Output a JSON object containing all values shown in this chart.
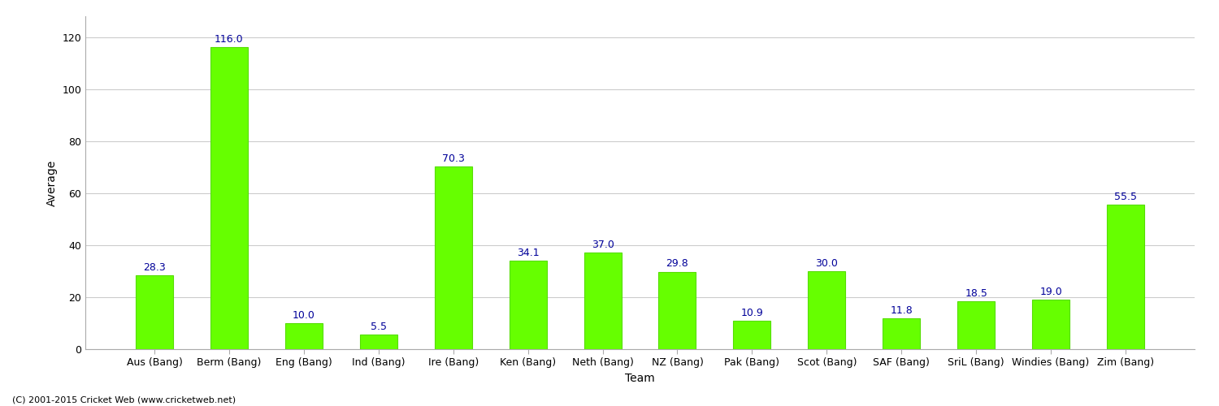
{
  "categories": [
    "Aus (Bang)",
    "Berm (Bang)",
    "Eng (Bang)",
    "Ind (Bang)",
    "Ire (Bang)",
    "Ken (Bang)",
    "Neth (Bang)",
    "NZ (Bang)",
    "Pak (Bang)",
    "Scot (Bang)",
    "SAF (Bang)",
    "SriL (Bang)",
    "Windies (Bang)",
    "Zim (Bang)"
  ],
  "values": [
    28.3,
    116.0,
    10.0,
    5.5,
    70.3,
    34.1,
    37.0,
    29.8,
    10.9,
    30.0,
    11.8,
    18.5,
    19.0,
    55.5
  ],
  "bar_color": "#66ff00",
  "bar_edge_color": "#55dd00",
  "label_color": "#000099",
  "xlabel": "Team",
  "ylabel": "Average",
  "ylim": [
    0,
    128
  ],
  "yticks": [
    0,
    20,
    40,
    60,
    80,
    100,
    120
  ],
  "background_color": "#ffffff",
  "grid_color": "#cccccc",
  "label_fontsize": 9,
  "axis_label_fontsize": 10,
  "tick_fontsize": 9,
  "footer_text": "(C) 2001-2015 Cricket Web (www.cricketweb.net)"
}
